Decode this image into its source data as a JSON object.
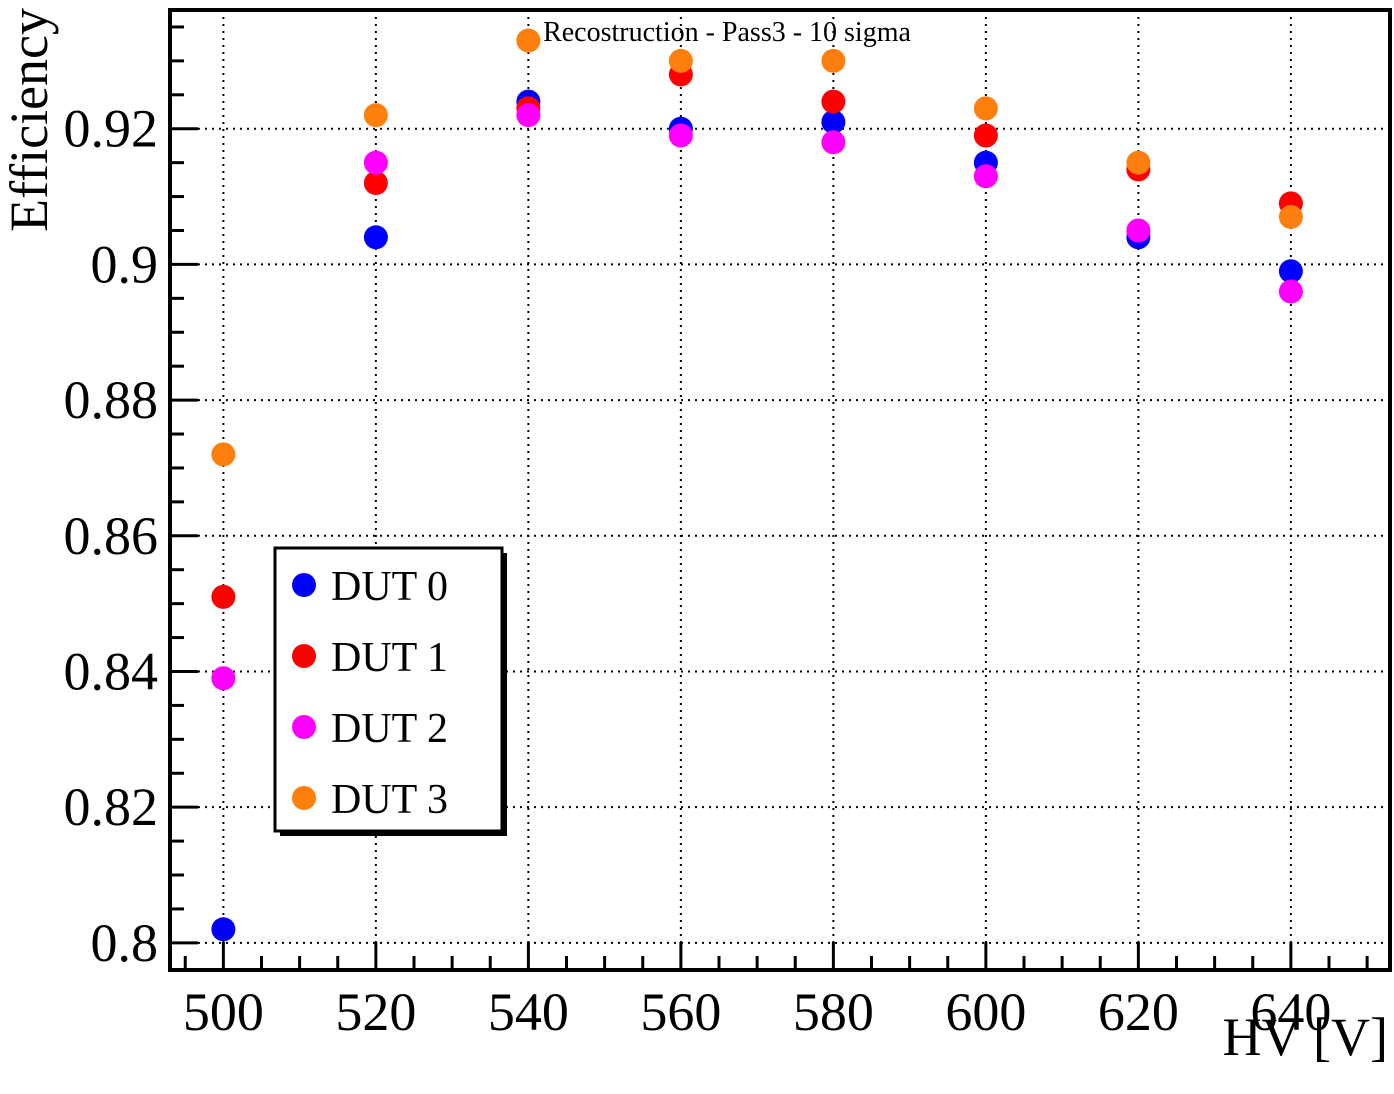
{
  "chart_data": {
    "type": "scatter",
    "title": "",
    "subtitle": "Recostruction - Pass3 - 10 sigma",
    "xlabel": "HV [V]",
    "ylabel": "Efficiency",
    "xlim": [
      493,
      653
    ],
    "ylim": [
      0.796,
      0.9375
    ],
    "x_ticks": [
      500,
      520,
      540,
      560,
      580,
      600,
      620,
      640
    ],
    "x_tick_labels": [
      "500",
      "520",
      "540",
      "560",
      "580",
      "600",
      "620",
      "640"
    ],
    "y_ticks": [
      0.8,
      0.82,
      0.84,
      0.86,
      0.88,
      0.9,
      0.92
    ],
    "y_tick_labels": [
      "0.8",
      "0.82",
      "0.84",
      "0.86",
      "0.88",
      "0.9",
      "0.92"
    ],
    "grid": true,
    "grid_style": "dotted",
    "legend_position": "lower-left",
    "x": [
      500,
      520,
      540,
      560,
      580,
      600,
      620,
      640
    ],
    "series": [
      {
        "name": "DUT 0",
        "color": "#0000ff",
        "values": [
          0.802,
          0.904,
          0.924,
          0.92,
          0.921,
          0.915,
          0.904,
          0.899
        ]
      },
      {
        "name": "DUT 1",
        "color": "#ff0000",
        "values": [
          0.851,
          0.912,
          0.923,
          0.928,
          0.924,
          0.919,
          0.914,
          0.909
        ]
      },
      {
        "name": "DUT 2",
        "color": "#ff00ff",
        "values": [
          0.839,
          0.915,
          0.922,
          0.919,
          0.918,
          0.913,
          0.905,
          0.896
        ]
      },
      {
        "name": "DUT 3",
        "color": "#ff7f0e",
        "values": [
          0.872,
          0.922,
          0.933,
          0.93,
          0.93,
          0.923,
          0.915,
          0.907
        ]
      }
    ]
  }
}
